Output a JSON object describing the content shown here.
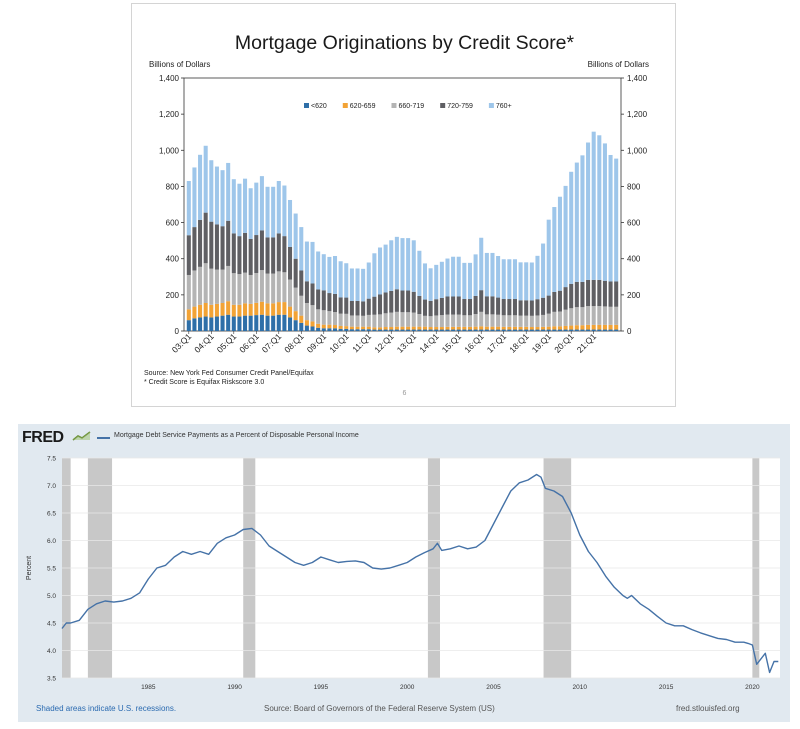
{
  "top": {
    "title": "Mortgage Originations by Credit Score*",
    "source": "Source: New York Fed Consumer Credit Panel/Equifax",
    "footnote": "* Credit Score is Equifax Riskscore 3.0",
    "page_number": "6"
  },
  "bottom": {
    "logo": "FRED",
    "series_title": "Mortgage Debt Service Payments as a Percent of Disposable Personal Income",
    "recession_note": "Shaded areas indicate U.S. recessions.",
    "source": "Source: Board of Governors of the Federal Reserve System (US)",
    "site": "fred.stlouisfed.org",
    "colors": {
      "line": "#4572a7",
      "recession": "#c8c8c8",
      "panel": "#e1e9f0"
    }
  },
  "chart_data": [
    {
      "type": "bar",
      "stacked": true,
      "title": "Mortgage Originations by Credit Score*",
      "ylabel": "Billions of Dollars",
      "ylabel_right": "Billions of Dollars",
      "ylim": [
        0,
        1400
      ],
      "yticks": [
        "0",
        "200",
        "400",
        "600",
        "800",
        "1,000",
        "1,200",
        "1,400"
      ],
      "xtick_labels": [
        "03:Q1",
        "04:Q1",
        "05:Q1",
        "06:Q1",
        "07:Q1",
        "08:Q1",
        "09:Q1",
        "10:Q1",
        "11:Q1",
        "12:Q1",
        "13:Q1",
        "14:Q1",
        "15:Q1",
        "16:Q1",
        "17:Q1",
        "18:Q1",
        "19:Q1",
        "20:Q1",
        "21:Q1"
      ],
      "legend_position": "top-center",
      "grid": false,
      "colors": [
        "#2e6fa8",
        "#f2a336",
        "#b4b4b4",
        "#5f5f63",
        "#9ec6ea"
      ],
      "series": [
        {
          "name": "<620",
          "values": [
            60,
            70,
            75,
            80,
            75,
            80,
            85,
            90,
            80,
            80,
            85,
            85,
            88,
            90,
            85,
            85,
            90,
            90,
            75,
            60,
            45,
            30,
            25,
            18,
            15,
            15,
            15,
            12,
            12,
            10,
            10,
            10,
            10,
            8,
            8,
            8,
            8,
            8,
            8,
            8,
            8,
            8,
            8,
            8,
            8,
            8,
            8,
            8,
            8,
            8,
            8,
            8,
            8,
            8,
            8,
            8,
            8,
            8,
            8,
            8,
            8,
            8,
            8,
            8,
            8,
            8,
            8,
            8,
            8,
            8,
            8,
            8,
            8,
            8,
            8,
            8,
            8
          ]
        },
        {
          "name": "620-659",
          "values": [
            60,
            65,
            70,
            75,
            70,
            70,
            70,
            75,
            65,
            65,
            68,
            65,
            68,
            72,
            68,
            68,
            70,
            70,
            60,
            50,
            40,
            30,
            28,
            22,
            20,
            20,
            18,
            16,
            15,
            14,
            14,
            14,
            14,
            12,
            12,
            14,
            14,
            16,
            16,
            16,
            16,
            16,
            16,
            14,
            14,
            14,
            15,
            15,
            15,
            15,
            15,
            16,
            18,
            16,
            16,
            16,
            15,
            15,
            15,
            15,
            15,
            14,
            14,
            15,
            16,
            18,
            18,
            20,
            22,
            24,
            24,
            26,
            26,
            26,
            26,
            26,
            26
          ]
        },
        {
          "name": "660-719",
          "values": [
            190,
            200,
            210,
            220,
            200,
            190,
            185,
            195,
            175,
            170,
            170,
            160,
            165,
            175,
            165,
            165,
            170,
            165,
            150,
            130,
            110,
            95,
            90,
            80,
            80,
            75,
            72,
            68,
            68,
            62,
            62,
            60,
            65,
            70,
            72,
            76,
            80,
            82,
            80,
            80,
            78,
            70,
            60,
            60,
            64,
            66,
            68,
            68,
            68,
            64,
            64,
            70,
            80,
            68,
            68,
            66,
            64,
            64,
            64,
            62,
            62,
            62,
            64,
            66,
            72,
            80,
            82,
            90,
            96,
            100,
            100,
            104,
            104,
            104,
            102,
            100,
            100
          ]
        },
        {
          "name": "720-759",
          "values": [
            220,
            240,
            260,
            280,
            260,
            250,
            240,
            250,
            220,
            210,
            220,
            200,
            210,
            220,
            200,
            200,
            210,
            200,
            180,
            160,
            140,
            120,
            120,
            110,
            110,
            100,
            100,
            90,
            90,
            80,
            80,
            80,
            90,
            100,
            110,
            115,
            120,
            125,
            120,
            120,
            115,
            100,
            90,
            85,
            90,
            95,
            100,
            100,
            100,
            90,
            90,
            100,
            120,
            100,
            100,
            95,
            90,
            90,
            90,
            85,
            85,
            85,
            90,
            95,
            100,
            110,
            115,
            125,
            135,
            140,
            140,
            145,
            145,
            145,
            142,
            140,
            140
          ]
        },
        {
          "name": "760+",
          "values": [
            300,
            330,
            360,
            370,
            340,
            320,
            310,
            320,
            300,
            290,
            300,
            280,
            290,
            300,
            280,
            280,
            290,
            280,
            260,
            250,
            240,
            220,
            230,
            210,
            200,
            200,
            210,
            200,
            190,
            180,
            180,
            180,
            200,
            240,
            260,
            265,
            280,
            290,
            290,
            290,
            285,
            250,
            200,
            180,
            190,
            200,
            210,
            220,
            220,
            200,
            200,
            230,
            290,
            240,
            240,
            230,
            220,
            220,
            220,
            210,
            210,
            210,
            240,
            300,
            420,
            470,
            520,
            560,
            620,
            660,
            700,
            760,
            820,
            800,
            760,
            700,
            680
          ]
        }
      ]
    },
    {
      "type": "line",
      "ylabel": "Percent",
      "xlabel": "",
      "xlim": [
        1980,
        2021.6
      ],
      "ylim": [
        3.5,
        7.5
      ],
      "yticks": [
        "3.5",
        "4.0",
        "4.5",
        "5.0",
        "5.5",
        "6.0",
        "6.5",
        "7.0",
        "7.5"
      ],
      "xticks": [
        "1985",
        "1990",
        "1995",
        "2000",
        "2005",
        "2010",
        "2015",
        "2020"
      ],
      "recessions": [
        [
          1980.0,
          1980.5
        ],
        [
          1981.5,
          1982.9
        ],
        [
          1990.5,
          1991.2
        ],
        [
          2001.2,
          2001.9
        ],
        [
          2007.9,
          2009.5
        ],
        [
          2020.0,
          2020.4
        ]
      ],
      "series": [
        {
          "x": [
            1980.0,
            1980.25,
            1980.5,
            1981.0,
            1981.5,
            1982.0,
            1982.5,
            1983.0,
            1983.5,
            1984.0,
            1984.5,
            1985.0,
            1985.5,
            1986.0,
            1986.5,
            1987.0,
            1987.5,
            1988.0,
            1988.5,
            1989.0,
            1989.5,
            1990.0,
            1990.5,
            1991.0,
            1991.5,
            1992.0,
            1992.5,
            1993.0,
            1993.5,
            1994.0,
            1994.5,
            1995.0,
            1995.5,
            1996.0,
            1996.5,
            1997.0,
            1997.5,
            1998.0,
            1998.5,
            1999.0,
            1999.5,
            2000.0,
            2000.5,
            2001.0,
            2001.5,
            2001.75,
            2002.0,
            2002.5,
            2003.0,
            2003.5,
            2004.0,
            2004.5,
            2005.0,
            2005.5,
            2006.0,
            2006.5,
            2007.0,
            2007.5,
            2007.75,
            2008.0,
            2008.5,
            2009.0,
            2009.5,
            2010.0,
            2010.5,
            2011.0,
            2011.5,
            2012.0,
            2012.5,
            2012.75,
            2013.0,
            2013.5,
            2014.0,
            2014.5,
            2015.0,
            2015.5,
            2016.0,
            2016.5,
            2017.0,
            2017.5,
            2018.0,
            2018.5,
            2019.0,
            2019.5,
            2019.75,
            2020.0,
            2020.25,
            2020.5,
            2020.75,
            2021.0,
            2021.25,
            2021.5
          ],
          "y": [
            4.4,
            4.5,
            4.5,
            4.55,
            4.75,
            4.85,
            4.9,
            4.88,
            4.9,
            4.95,
            5.05,
            5.3,
            5.5,
            5.55,
            5.7,
            5.8,
            5.75,
            5.8,
            5.75,
            5.95,
            6.05,
            6.1,
            6.2,
            6.22,
            6.1,
            5.9,
            5.8,
            5.7,
            5.6,
            5.55,
            5.6,
            5.7,
            5.65,
            5.6,
            5.62,
            5.63,
            5.6,
            5.5,
            5.48,
            5.5,
            5.55,
            5.6,
            5.7,
            5.78,
            5.85,
            5.95,
            5.82,
            5.85,
            5.9,
            5.85,
            5.88,
            6.0,
            6.3,
            6.6,
            6.9,
            7.05,
            7.1,
            7.2,
            7.15,
            6.95,
            6.9,
            6.8,
            6.5,
            6.1,
            5.8,
            5.6,
            5.35,
            5.15,
            5.0,
            4.95,
            5.0,
            4.85,
            4.75,
            4.62,
            4.5,
            4.45,
            4.45,
            4.38,
            4.32,
            4.27,
            4.22,
            4.2,
            4.15,
            4.15,
            4.13,
            4.1,
            3.75,
            3.85,
            3.95,
            3.6,
            3.8,
            3.8
          ]
        }
      ]
    }
  ]
}
